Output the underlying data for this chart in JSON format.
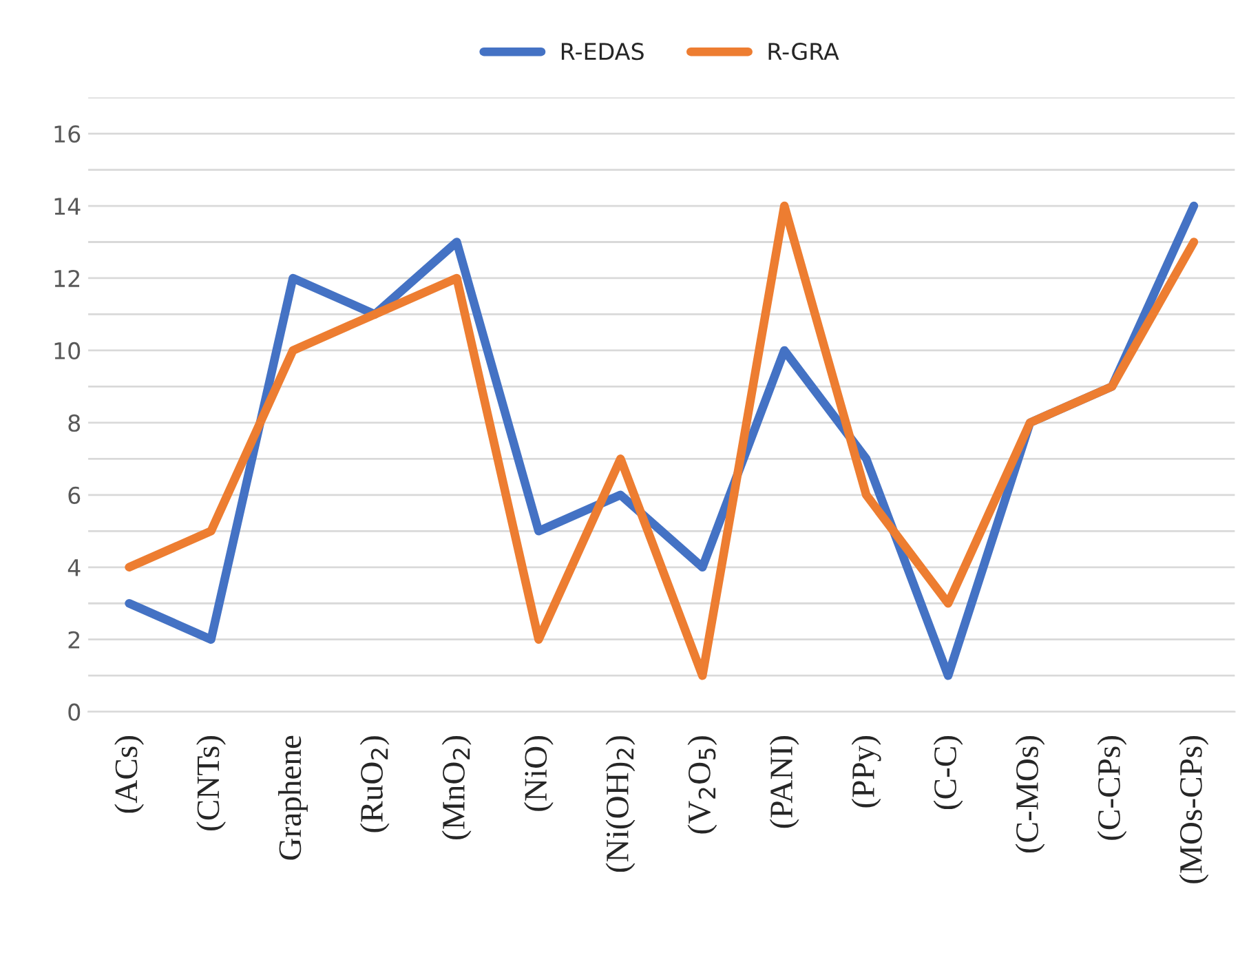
{
  "chart_data": {
    "type": "line",
    "categories": [
      "(ACs)",
      "(CNTs)",
      "Graphene",
      "(RuO$_{2}$)",
      "(MnO$_{2}$)",
      "(NiO)",
      "(Ni(OH)$_{2}$)",
      "(V$_{2}$O$_{5}$)",
      "(PANI)",
      "(PPy)",
      "(C-C)",
      "(C-MOs)",
      "(C-CPs)",
      "(MOs-CPs)"
    ],
    "series": [
      {
        "name": "R-EDAS",
        "color": "#4472c4",
        "values": [
          3,
          2,
          12,
          11,
          13,
          5,
          6,
          4,
          10,
          7,
          1,
          8,
          9,
          14
        ]
      },
      {
        "name": "R-GRA",
        "color": "#ed7d31",
        "values": [
          4,
          5,
          10,
          11,
          12,
          2,
          7,
          1,
          14,
          6,
          3,
          8,
          9,
          13
        ]
      }
    ],
    "ylim": [
      0,
      17
    ],
    "yticks": [
      0,
      {
        "value": 1,
        "label": null
      },
      2,
      {
        "value": 3,
        "label": null
      },
      4,
      {
        "value": 5,
        "label": null
      },
      6,
      {
        "value": 7,
        "label": null
      },
      8,
      {
        "value": 9,
        "label": null
      },
      10,
      {
        "value": 11,
        "label": null
      },
      12,
      {
        "value": 13,
        "label": null
      },
      14,
      {
        "value": 15,
        "label": null
      },
      16,
      {
        "value": 17,
        "label": null
      }
    ],
    "grid": "y",
    "legend": "top",
    "marker": "none",
    "line_style": "solid"
  }
}
